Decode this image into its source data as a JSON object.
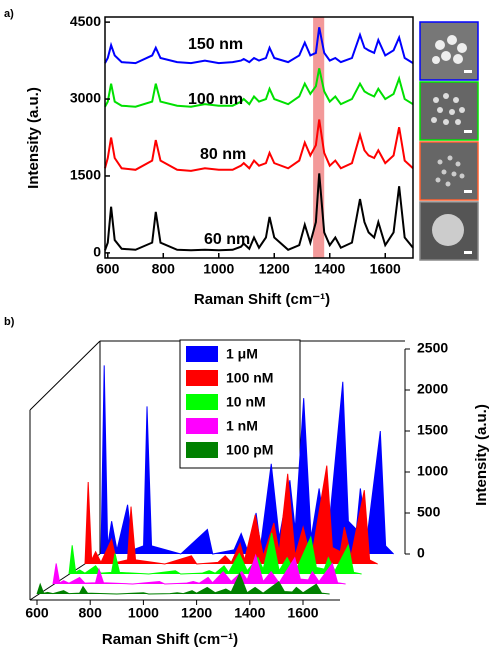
{
  "chart_data": [
    {
      "type": "line",
      "panel_label": "a)",
      "xlabel": "Raman Shift (cm⁻¹)",
      "ylabel": "Intensity (a.u.)",
      "xlim": [
        590,
        1700
      ],
      "ylim": [
        -100,
        4600
      ],
      "xticks": [
        600,
        800,
        1000,
        1200,
        1400,
        1600
      ],
      "yticks": [
        0,
        1500,
        3000,
        4500
      ],
      "highlight_band": [
        1340,
        1380
      ],
      "highlight_color": "#f08080",
      "x": [
        590,
        600,
        612,
        625,
        650,
        700,
        760,
        773,
        790,
        850,
        900,
        950,
        1000,
        1050,
        1080,
        1090,
        1110,
        1127,
        1145,
        1170,
        1183,
        1200,
        1250,
        1290,
        1310,
        1330,
        1350,
        1362,
        1380,
        1400,
        1420,
        1440,
        1480,
        1509,
        1525,
        1540,
        1560,
        1575,
        1600,
        1630,
        1650,
        1670,
        1700
      ],
      "series": [
        {
          "name": "150 nm",
          "color": "#0000ff",
          "values": [
            3700,
            3800,
            4050,
            3850,
            3720,
            3700,
            3850,
            4000,
            3800,
            3720,
            3700,
            3750,
            3700,
            3720,
            3750,
            3780,
            3720,
            3800,
            3750,
            3800,
            4000,
            3800,
            3720,
            3850,
            4100,
            3850,
            3900,
            4400,
            3900,
            3750,
            3800,
            3720,
            3800,
            4250,
            4000,
            3950,
            3900,
            4150,
            3850,
            3950,
            4200,
            3800,
            3700
          ]
        },
        {
          "name": "100 nm",
          "color": "#00e000",
          "values": [
            2850,
            2950,
            3300,
            2950,
            2870,
            2850,
            2950,
            3300,
            2950,
            2870,
            2850,
            2900,
            2870,
            2870,
            2950,
            3000,
            2900,
            3050,
            2950,
            3000,
            3200,
            3000,
            2900,
            3050,
            3300,
            3100,
            3250,
            3600,
            3150,
            2950,
            3050,
            2900,
            3000,
            3300,
            3150,
            3100,
            3050,
            3200,
            3000,
            3100,
            3400,
            3000,
            2900
          ]
        },
        {
          "name": "80 nm",
          "color": "#ff0000",
          "values": [
            1650,
            1850,
            2250,
            1850,
            1650,
            1620,
            1800,
            2200,
            1800,
            1620,
            1600,
            1650,
            1620,
            1620,
            1700,
            1750,
            1650,
            1800,
            1700,
            1750,
            1950,
            1750,
            1650,
            1800,
            2150,
            1900,
            2100,
            2600,
            1950,
            1700,
            1800,
            1650,
            1750,
            2300,
            2000,
            1900,
            1850,
            2000,
            1750,
            1900,
            2450,
            1800,
            1650
          ]
        },
        {
          "name": "60 nm",
          "color": "#000000",
          "values": [
            50,
            200,
            900,
            250,
            80,
            60,
            200,
            800,
            200,
            60,
            50,
            60,
            50,
            60,
            120,
            180,
            80,
            300,
            100,
            300,
            700,
            300,
            60,
            150,
            550,
            200,
            600,
            1550,
            400,
            150,
            300,
            100,
            200,
            1050,
            600,
            400,
            300,
            600,
            150,
            400,
            1300,
            300,
            100
          ]
        }
      ]
    },
    {
      "type": "waterfall",
      "panel_label": "b)",
      "xlabel": "Raman Shift (cm⁻¹)",
      "zlabel": "Intensity (a.u.)",
      "xlim": [
        600,
        1700
      ],
      "zlim": [
        0,
        2500
      ],
      "xticks": [
        600,
        800,
        1000,
        1200,
        1400,
        1600
      ],
      "zticks": [
        0,
        500,
        1000,
        1500,
        2000,
        2500
      ],
      "x": [
        600,
        612,
        625,
        640,
        660,
        700,
        720,
        760,
        773,
        790,
        900,
        1000,
        1020,
        1100,
        1127,
        1150,
        1183,
        1200,
        1240,
        1270,
        1310,
        1330,
        1362,
        1390,
        1420,
        1450,
        1509,
        1530,
        1560,
        1575,
        1600,
        1650,
        1670,
        1700
      ],
      "series": [
        {
          "name": "1 μM",
          "color": "#0000ff",
          "values": [
            0,
            2300,
            100,
            400,
            50,
            600,
            50,
            100,
            1800,
            100,
            0,
            300,
            0,
            50,
            250,
            50,
            500,
            100,
            1100,
            200,
            900,
            300,
            1900,
            200,
            800,
            100,
            2100,
            400,
            300,
            800,
            200,
            1500,
            100,
            0
          ]
        },
        {
          "name": "100 nM",
          "color": "#ff0000",
          "values": [
            0,
            1000,
            50,
            150,
            20,
            300,
            20,
            50,
            700,
            50,
            0,
            100,
            0,
            20,
            100,
            20,
            250,
            50,
            600,
            100,
            500,
            150,
            1100,
            100,
            450,
            50,
            1200,
            200,
            150,
            450,
            100,
            900,
            50,
            0
          ]
        },
        {
          "name": "10 nM",
          "color": "#00ff00",
          "values": [
            0,
            350,
            20,
            50,
            10,
            100,
            10,
            20,
            250,
            20,
            0,
            40,
            0,
            10,
            40,
            10,
            100,
            20,
            250,
            40,
            200,
            60,
            500,
            40,
            200,
            20,
            450,
            80,
            60,
            200,
            40,
            350,
            20,
            0
          ]
        },
        {
          "name": "1 nM",
          "color": "#ff00ff",
          "values": [
            0,
            250,
            15,
            40,
            10,
            80,
            10,
            15,
            180,
            15,
            0,
            30,
            0,
            10,
            30,
            10,
            80,
            15,
            150,
            30,
            150,
            50,
            350,
            30,
            150,
            15,
            320,
            60,
            50,
            150,
            30,
            250,
            15,
            0
          ]
        },
        {
          "name": "100 pM",
          "color": "#008000",
          "values": [
            0,
            120,
            10,
            20,
            5,
            40,
            5,
            10,
            90,
            10,
            0,
            15,
            0,
            5,
            15,
            5,
            40,
            10,
            80,
            15,
            60,
            25,
            250,
            15,
            80,
            10,
            150,
            30,
            25,
            80,
            15,
            120,
            10,
            0
          ]
        }
      ]
    }
  ]
}
